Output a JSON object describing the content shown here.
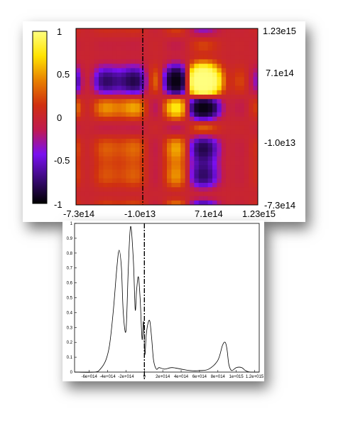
{
  "chart_data": [
    {
      "type": "heatmap",
      "title": "",
      "xlabel": "",
      "ylabel": "",
      "x_ticks": [
        "-7.3e14",
        "-1.0e13",
        "7.1e14",
        "1.23e15"
      ],
      "y_ticks_right": [
        "1.23e15",
        "7.1e14",
        "-1.0e13",
        "-7.3e14"
      ],
      "colorbar": {
        "ticks": [
          "1",
          "0.5",
          "0",
          "-0.5",
          "-1"
        ],
        "range": [
          -1,
          1
        ]
      },
      "xlim": [
        -730000000000000,
        1230000000000000
      ],
      "ylim": [
        -730000000000000,
        1230000000000000
      ],
      "dashed_line_x": -10000000000000,
      "grid": false,
      "colormap": [
        "#000000",
        "#3a0a78",
        "#7a10f0",
        "#c01a50",
        "#d03010",
        "#e88000",
        "#ffe300",
        "#ffff80"
      ]
    },
    {
      "type": "line",
      "title": "",
      "xlabel": "",
      "ylabel": "",
      "xlim": [
        -760000000000000,
        1250000000000000
      ],
      "ylim": [
        0,
        1
      ],
      "x_ticks": [
        "-6e+014",
        "-4e+014",
        "-2e+014",
        "0",
        "2e+014",
        "4e+014",
        "6e+014",
        "8e+014",
        "1e+015",
        "1.2e+015"
      ],
      "y_ticks": [
        "0",
        "0.1",
        "0.2",
        "0.3",
        "0.4",
        "0.5",
        "0.6",
        "0.7",
        "0.8",
        "0.9",
        "1"
      ],
      "dashed_line_x": 0,
      "grid": false,
      "series": [
        {
          "x": [
            -760000000000000,
            -540000000000000,
            -480000000000000,
            -420000000000000,
            -380000000000000,
            -340000000000000,
            -300000000000000,
            -275000000000000,
            -250000000000000,
            -230000000000000,
            -200000000000000,
            -175000000000000,
            -150000000000000,
            -120000000000000,
            -100000000000000,
            -85000000000000,
            -65000000000000,
            -45000000000000,
            -25000000000000,
            -10000000000000,
            5000000000000,
            20000000000000,
            40000000000000,
            60000000000000,
            80000000000000,
            100000000000000,
            130000000000000,
            160000000000000,
            220000000000000,
            300000000000000,
            400000000000000,
            500000000000000,
            600000000000000,
            700000000000000,
            800000000000000,
            850000000000000,
            880000000000000,
            900000000000000,
            920000000000000,
            950000000000000,
            1000000000000000,
            1060000000000000,
            1100000000000000,
            1150000000000000,
            1250000000000000
          ],
          "y": [
            0.0,
            0.0,
            0.02,
            0.08,
            0.18,
            0.4,
            0.7,
            0.82,
            0.7,
            0.4,
            0.28,
            0.7,
            0.98,
            0.75,
            0.42,
            0.55,
            0.64,
            0.48,
            0.22,
            0.34,
            0.12,
            0.25,
            0.33,
            0.34,
            0.22,
            0.08,
            0.02,
            0.03,
            0.02,
            0.03,
            0.02,
            0.01,
            0.01,
            0.02,
            0.08,
            0.18,
            0.2,
            0.15,
            0.05,
            0.01,
            0.03,
            0.03,
            0.01,
            0.0,
            0.0
          ]
        }
      ]
    }
  ]
}
